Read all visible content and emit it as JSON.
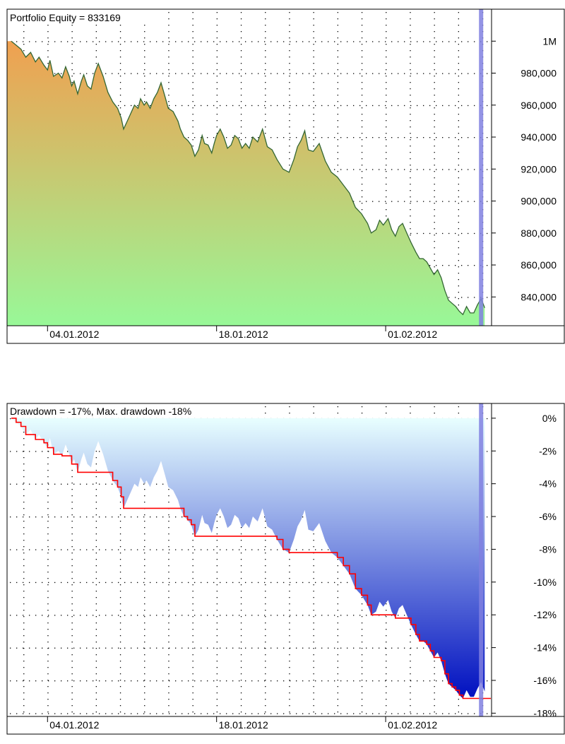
{
  "chart_data": [
    {
      "type": "area",
      "title": "Portfolio Equity = 833169",
      "y_tick_labels": [
        "1M",
        "980,000",
        "960,000",
        "940,000",
        "920,000",
        "900,000",
        "880,000",
        "860,000",
        "840,000"
      ],
      "y_tick_values": [
        1000000,
        980000,
        960000,
        940000,
        920000,
        900000,
        880000,
        860000,
        840000
      ],
      "ylim": [
        822000,
        1020000
      ],
      "x_tick_labels": [
        "04.01.2012",
        "18.01.2012",
        "01.02.2012"
      ],
      "x_tick_days": [
        3,
        17,
        31
      ],
      "x_days_range": [
        0,
        39.3
      ],
      "cursor_day": 38.9,
      "grid": true,
      "equity": [
        [
          0.0,
          1000000
        ],
        [
          0.4,
          997500
        ],
        [
          0.8,
          995000
        ],
        [
          1.2,
          990000
        ],
        [
          1.6,
          993000
        ],
        [
          2.0,
          987000
        ],
        [
          2.3,
          990000
        ],
        [
          2.7,
          985000
        ],
        [
          3.0,
          982000
        ],
        [
          3.2,
          988000
        ],
        [
          3.5,
          978000
        ],
        [
          3.9,
          980000
        ],
        [
          4.2,
          977000
        ],
        [
          4.5,
          984000
        ],
        [
          4.8,
          978000
        ],
        [
          5.0,
          972000
        ],
        [
          5.2,
          975000
        ],
        [
          5.5,
          967000
        ],
        [
          5.8,
          975000
        ],
        [
          6.0,
          979000
        ],
        [
          6.3,
          972000
        ],
        [
          6.6,
          970000
        ],
        [
          6.9,
          980000
        ],
        [
          7.2,
          986000
        ],
        [
          7.6,
          978000
        ],
        [
          8.0,
          968000
        ],
        [
          8.4,
          962000
        ],
        [
          8.8,
          958000
        ],
        [
          9.1,
          952000
        ],
        [
          9.3,
          945000
        ],
        [
          9.6,
          950000
        ],
        [
          9.9,
          955000
        ],
        [
          10.2,
          960000
        ],
        [
          10.5,
          958000
        ],
        [
          10.7,
          964000
        ],
        [
          11.0,
          960000
        ],
        [
          11.2,
          962000
        ],
        [
          11.5,
          958000
        ],
        [
          11.8,
          964000
        ],
        [
          12.1,
          968000
        ],
        [
          12.4,
          974000
        ],
        [
          12.7,
          966000
        ],
        [
          13.0,
          958000
        ],
        [
          13.4,
          956000
        ],
        [
          13.8,
          950000
        ],
        [
          14.0,
          945000
        ],
        [
          14.3,
          940000
        ],
        [
          14.6,
          938000
        ],
        [
          14.9,
          935000
        ],
        [
          15.2,
          928000
        ],
        [
          15.5,
          932000
        ],
        [
          15.8,
          941000
        ],
        [
          16.0,
          936000
        ],
        [
          16.3,
          935000
        ],
        [
          16.6,
          930000
        ],
        [
          16.8,
          936000
        ],
        [
          17.0,
          941000
        ],
        [
          17.3,
          945000
        ],
        [
          17.6,
          940000
        ],
        [
          17.9,
          933000
        ],
        [
          18.2,
          935000
        ],
        [
          18.5,
          941000
        ],
        [
          18.8,
          939000
        ],
        [
          19.1,
          933000
        ],
        [
          19.4,
          936000
        ],
        [
          19.7,
          933000
        ],
        [
          20.0,
          940000
        ],
        [
          20.4,
          937000
        ],
        [
          20.8,
          945000
        ],
        [
          21.2,
          934000
        ],
        [
          21.6,
          932000
        ],
        [
          22.0,
          926000
        ],
        [
          22.5,
          920000
        ],
        [
          23.0,
          918000
        ],
        [
          23.4,
          926000
        ],
        [
          23.7,
          934000
        ],
        [
          24.0,
          938000
        ],
        [
          24.3,
          944000
        ],
        [
          24.6,
          932000
        ],
        [
          25.0,
          931000
        ],
        [
          25.5,
          936000
        ],
        [
          26.0,
          925000
        ],
        [
          26.5,
          918000
        ],
        [
          27.0,
          915000
        ],
        [
          27.5,
          910000
        ],
        [
          28.0,
          905000
        ],
        [
          28.5,
          896000
        ],
        [
          29.0,
          892000
        ],
        [
          29.5,
          886000
        ],
        [
          29.8,
          880000
        ],
        [
          30.2,
          882000
        ],
        [
          30.5,
          888000
        ],
        [
          30.8,
          885000
        ],
        [
          31.2,
          889000
        ],
        [
          31.5,
          882000
        ],
        [
          31.8,
          878000
        ],
        [
          32.1,
          884000
        ],
        [
          32.4,
          886000
        ],
        [
          32.8,
          879000
        ],
        [
          33.1,
          874000
        ],
        [
          33.5,
          868000
        ],
        [
          33.8,
          864000
        ],
        [
          34.1,
          864000
        ],
        [
          34.4,
          862000
        ],
        [
          34.7,
          858000
        ],
        [
          35.0,
          854000
        ],
        [
          35.3,
          857000
        ],
        [
          35.6,
          852000
        ],
        [
          35.9,
          844000
        ],
        [
          36.2,
          838000
        ],
        [
          36.5,
          836000
        ],
        [
          36.8,
          834000
        ],
        [
          37.1,
          831000
        ],
        [
          37.4,
          829000
        ],
        [
          37.7,
          834000
        ],
        [
          38.0,
          830000
        ],
        [
          38.3,
          830000
        ],
        [
          38.6,
          835000
        ],
        [
          38.9,
          839000
        ],
        [
          39.2,
          833169
        ]
      ]
    },
    {
      "type": "area",
      "title": "Drawdown = -17%, Max. drawdown -18%",
      "y_tick_labels": [
        "0%",
        "-2%",
        "-4%",
        "-6%",
        "-8%",
        "-10%",
        "-12%",
        "-14%",
        "-16%",
        "-18%"
      ],
      "y_tick_values": [
        0,
        -2,
        -4,
        -6,
        -8,
        -10,
        -12,
        -14,
        -16,
        -18
      ],
      "ylim": [
        -18.2,
        0.9
      ],
      "x_tick_labels": [
        "04.01.2012",
        "18.01.2012",
        "01.02.2012"
      ],
      "x_tick_days": [
        3,
        17,
        31
      ],
      "x_days_range": [
        0,
        39.3
      ],
      "series": [
        {
          "name": "",
          "role": "drawdown (area)",
          "derived_from": "equity peak"
        },
        {
          "name": "",
          "role": "max drawdown (red step line)",
          "color": "#ff0000"
        }
      ],
      "current_drawdown_pct": -17,
      "max_drawdown_pct": -18
    }
  ],
  "colors": {
    "equity_top": "#f0a050",
    "equity_bottom": "#98f898",
    "equity_line": "#336633",
    "dd_top": "#e8ffff",
    "dd_bottom": "#0010c0",
    "max_dd_line": "#ff0000",
    "cursor": "#8080e0"
  }
}
